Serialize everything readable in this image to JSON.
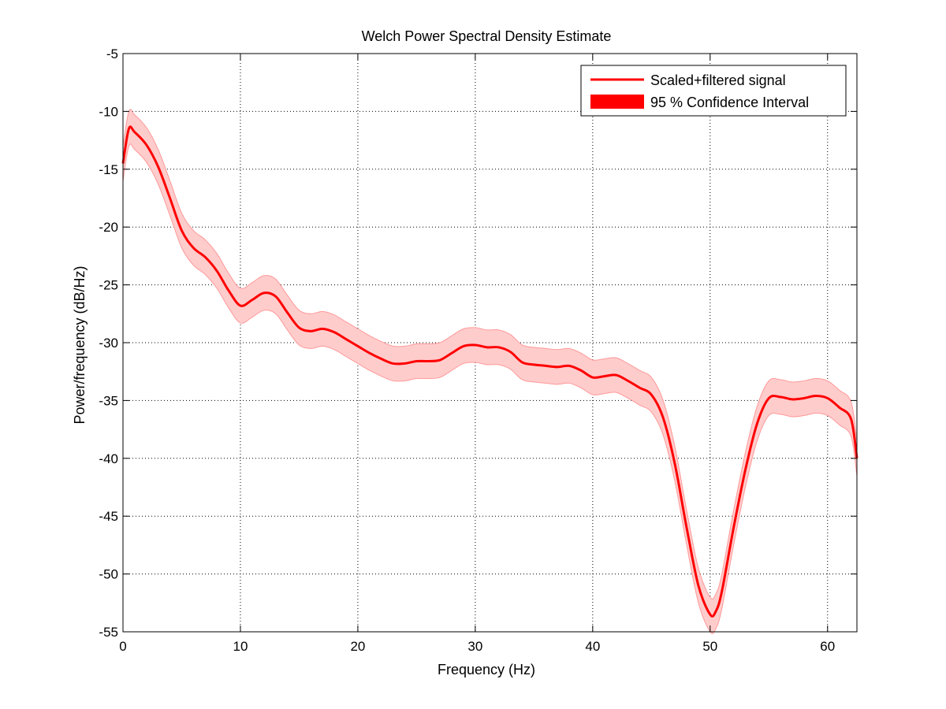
{
  "chart_data": {
    "type": "line",
    "title": "Welch Power Spectral Density Estimate",
    "xlabel": "Frequency (Hz)",
    "ylabel": "Power/frequency (dB/Hz)",
    "xlim": [
      0,
      62.5
    ],
    "ylim": [
      -55,
      -5
    ],
    "xticks": [
      0,
      10,
      20,
      30,
      40,
      50,
      60
    ],
    "yticks": [
      -55,
      -50,
      -45,
      -40,
      -35,
      -30,
      -25,
      -20,
      -15,
      -10,
      -5
    ],
    "grid": true,
    "legend_position": "top-right",
    "legend": [
      "Scaled+filtered signal",
      "95 % Confidence Interval"
    ],
    "colors": {
      "line": "#ff0000",
      "band": "#ffcccc",
      "band_edge": "#ff9999"
    },
    "series": [
      {
        "name": "Scaled+filtered signal",
        "x": [
          0,
          0.5,
          1,
          2,
          3,
          4,
          5,
          6,
          7,
          8,
          9,
          10,
          11,
          12,
          13,
          14,
          15,
          16,
          17,
          18,
          19,
          20,
          21,
          22,
          23,
          24,
          25,
          26,
          27,
          28,
          29,
          30,
          31,
          32,
          33,
          34,
          35,
          36,
          37,
          38,
          39,
          40,
          41,
          42,
          43,
          44,
          45,
          46,
          47,
          48,
          49,
          50,
          50.5,
          51,
          52,
          53,
          54,
          55,
          56,
          57,
          58,
          59,
          60,
          61,
          62,
          62.5
        ],
        "y": [
          -14.5,
          -11.5,
          -11.8,
          -12.9,
          -14.8,
          -17.5,
          -20.3,
          -21.8,
          -22.6,
          -23.8,
          -25.5,
          -26.8,
          -26.3,
          -25.7,
          -26.0,
          -27.4,
          -28.7,
          -29.0,
          -28.8,
          -29.1,
          -29.7,
          -30.3,
          -30.9,
          -31.4,
          -31.8,
          -31.8,
          -31.6,
          -31.6,
          -31.5,
          -30.9,
          -30.3,
          -30.2,
          -30.4,
          -30.4,
          -30.8,
          -31.7,
          -31.9,
          -32.0,
          -32.1,
          -32.0,
          -32.4,
          -33.0,
          -32.9,
          -32.8,
          -33.3,
          -33.9,
          -34.5,
          -36.5,
          -40.5,
          -46.0,
          -51.0,
          -53.5,
          -53.2,
          -51.5,
          -46.0,
          -41.0,
          -37.0,
          -34.8,
          -34.7,
          -34.9,
          -34.8,
          -34.6,
          -34.8,
          -35.6,
          -36.6,
          -40.0
        ]
      }
    ],
    "confidence_interval": {
      "name": "95 % Confidence Interval",
      "half_width_db": 1.5
    }
  }
}
